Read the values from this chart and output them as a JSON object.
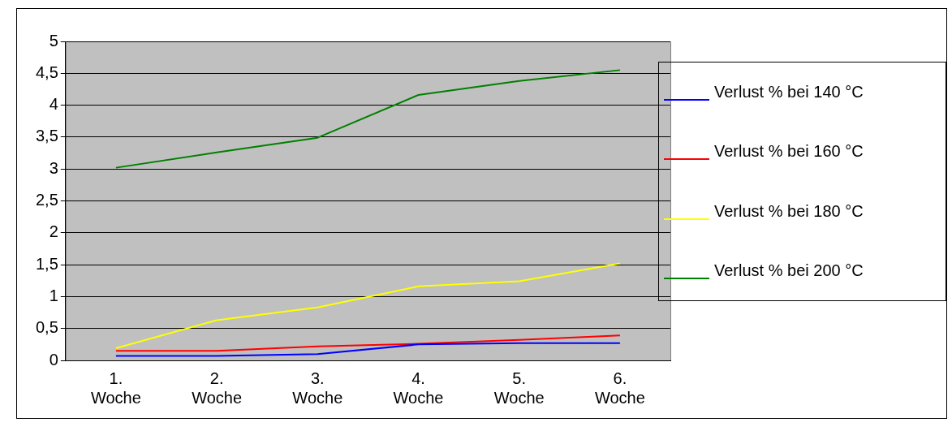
{
  "chart_data": {
    "type": "line",
    "categories": [
      "1. Woche",
      "2. Woche",
      "3. Woche",
      "4. Woche",
      "5. Woche",
      "6. Woche"
    ],
    "series": [
      {
        "name": "Verlust % bei 140 °C",
        "color": "#0000ff",
        "values": [
          0.07,
          0.07,
          0.1,
          0.25,
          0.27,
          0.27
        ]
      },
      {
        "name": "Verlust % bei 160 °C",
        "color": "#ff0000",
        "values": [
          0.15,
          0.15,
          0.22,
          0.26,
          0.32,
          0.39
        ]
      },
      {
        "name": "Verlust % bei 180 °C",
        "color": "#ffff00",
        "values": [
          0.19,
          0.63,
          0.83,
          1.16,
          1.24,
          1.52
        ]
      },
      {
        "name": "Verlust % bei 200 °C",
        "color": "#008000",
        "values": [
          3.02,
          3.26,
          3.49,
          4.16,
          4.38,
          4.55
        ]
      }
    ],
    "ylim": [
      0,
      5
    ],
    "yticks": [
      {
        "value": 0,
        "label": "0"
      },
      {
        "value": 0.5,
        "label": "0,5"
      },
      {
        "value": 1,
        "label": "1"
      },
      {
        "value": 1.5,
        "label": "1,5"
      },
      {
        "value": 2,
        "label": "2"
      },
      {
        "value": 2.5,
        "label": "2,5"
      },
      {
        "value": 3,
        "label": "3"
      },
      {
        "value": 3.5,
        "label": "3,5"
      },
      {
        "value": 4,
        "label": "4"
      },
      {
        "value": 4.5,
        "label": "4,5"
      },
      {
        "value": 5,
        "label": "5"
      }
    ],
    "grid": "y",
    "legend": "right",
    "marker": "none"
  }
}
